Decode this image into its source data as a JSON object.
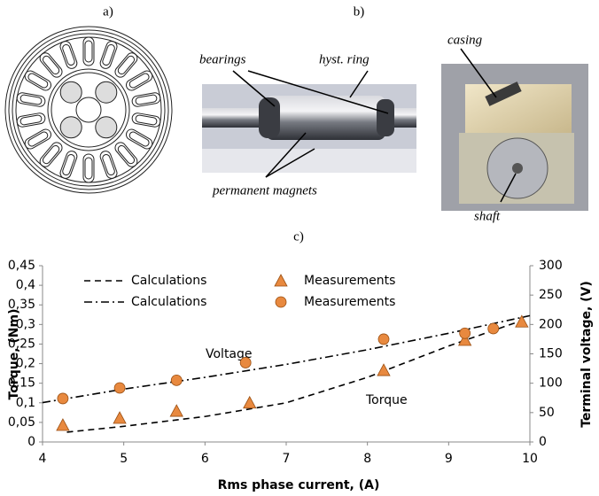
{
  "figure": {
    "panel_labels": [
      "a)",
      "b)",
      "c)"
    ],
    "labels": {
      "bearings": "bearings",
      "hyst_ring": "hyst. ring",
      "permanent_magnets": "permanent magnets",
      "casing": "casing",
      "shaft": "shaft"
    }
  },
  "chart_data": {
    "type": "line",
    "x_label": "Rms phase current, (A)",
    "y_label": "Torque, (Nm)",
    "y2_label": "Terminal voltage, (V)",
    "xlim": [
      4,
      10
    ],
    "xticks": [
      4,
      5,
      6,
      7,
      8,
      9,
      10
    ],
    "ylim": [
      0,
      0.45
    ],
    "yticks": [
      0,
      {
        "value": 0.05,
        "label": "0,05"
      },
      {
        "value": 0.1,
        "label": "0,1"
      },
      {
        "value": 0.15,
        "label": "0,15"
      },
      {
        "value": 0.2,
        "label": "0,2"
      },
      {
        "value": 0.25,
        "label": "0,25"
      },
      {
        "value": 0.3,
        "label": "0,3"
      },
      {
        "value": 0.35,
        "label": "0,35"
      },
      {
        "value": 0.4,
        "label": "0,4"
      },
      {
        "value": 0.45,
        "label": "0,45"
      }
    ],
    "y2lim": [
      0,
      300
    ],
    "y2ticks": [
      0,
      50,
      100,
      150,
      200,
      250,
      300
    ],
    "grid": false,
    "annotations": [
      {
        "text": "Voltage"
      },
      {
        "text": "Torque"
      }
    ],
    "series": [
      {
        "name": "Calculations",
        "style": "dashed",
        "color": "#000000",
        "x": [
          4.3,
          5,
          6,
          7,
          8,
          9,
          9.9
        ],
        "values": [
          0.025,
          0.04,
          0.065,
          0.1,
          0.165,
          0.245,
          0.31
        ]
      },
      {
        "name": "Measurements",
        "style": "triangle",
        "color": "#e8893f",
        "x": [
          4.25,
          4.95,
          5.65,
          6.55,
          8.2,
          9.2,
          9.9
        ],
        "values": [
          0.043,
          0.061,
          0.079,
          0.1,
          0.183,
          0.26,
          0.307
        ]
      },
      {
        "name": "Calculations",
        "style": "dashdot",
        "color": "#000000",
        "axis": "y2",
        "x": [
          4,
          5,
          6,
          7,
          8,
          9,
          10
        ],
        "values": [
          67,
          90,
          110,
          132,
          157,
          185,
          215
        ]
      },
      {
        "name": "Measurements",
        "style": "circle",
        "color": "#e8893f",
        "axis": "y2",
        "x": [
          4.25,
          4.95,
          5.65,
          6.5,
          8.2,
          9.2,
          9.55
        ],
        "values": [
          74,
          92,
          105,
          135,
          175,
          185,
          193
        ]
      }
    ]
  }
}
